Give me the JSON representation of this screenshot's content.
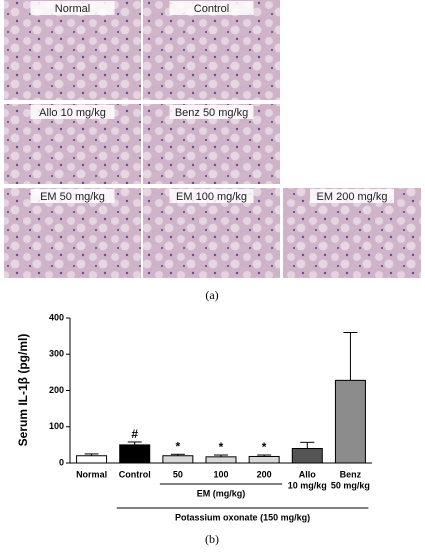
{
  "panels": [
    {
      "label": "Normal"
    },
    {
      "label": "Control"
    },
    {
      "label": "Allo 10 mg/kg"
    },
    {
      "label": "Benz 50 mg/kg"
    },
    {
      "label": "EM 50 mg/kg"
    },
    {
      "label": "EM 100 mg/kg"
    },
    {
      "label": "EM 200 mg/kg"
    }
  ],
  "panel_caption": "(a)",
  "chart_caption": "(b)",
  "chart_data": {
    "type": "bar",
    "y_label": "Serum IL-1β (pg/ml)",
    "categories": [
      "Normal",
      "Control",
      "50",
      "100",
      "200",
      [
        "Allo",
        "10 mg/kg"
      ],
      [
        "Benz",
        "50 mg/kg"
      ]
    ],
    "values": [
      20,
      50,
      20,
      17,
      18,
      40,
      228
    ],
    "error": [
      5,
      8,
      4,
      5,
      4,
      17,
      132
    ],
    "colors": [
      "#ffffff",
      "#000000",
      "#d9d9d9",
      "#d9d9d9",
      "#d9d9d9",
      "#555555",
      "#8c8c8c"
    ],
    "ylim": [
      0,
      400
    ],
    "yticks": [
      0,
      100,
      200,
      300,
      400
    ],
    "annotations": [
      {
        "text": "#",
        "category": "Control"
      },
      {
        "text": "*",
        "category": "50"
      },
      {
        "text": "*",
        "category": "100"
      },
      {
        "text": "*",
        "category": "200"
      }
    ],
    "groups": [
      {
        "label": "EM (mg/kg)",
        "from": "50",
        "to": "200"
      },
      {
        "label": "Potassium oxonate (150 mg/kg)",
        "from": "Control",
        "to": [
          "Benz",
          "50 mg/kg"
        ]
      }
    ]
  }
}
